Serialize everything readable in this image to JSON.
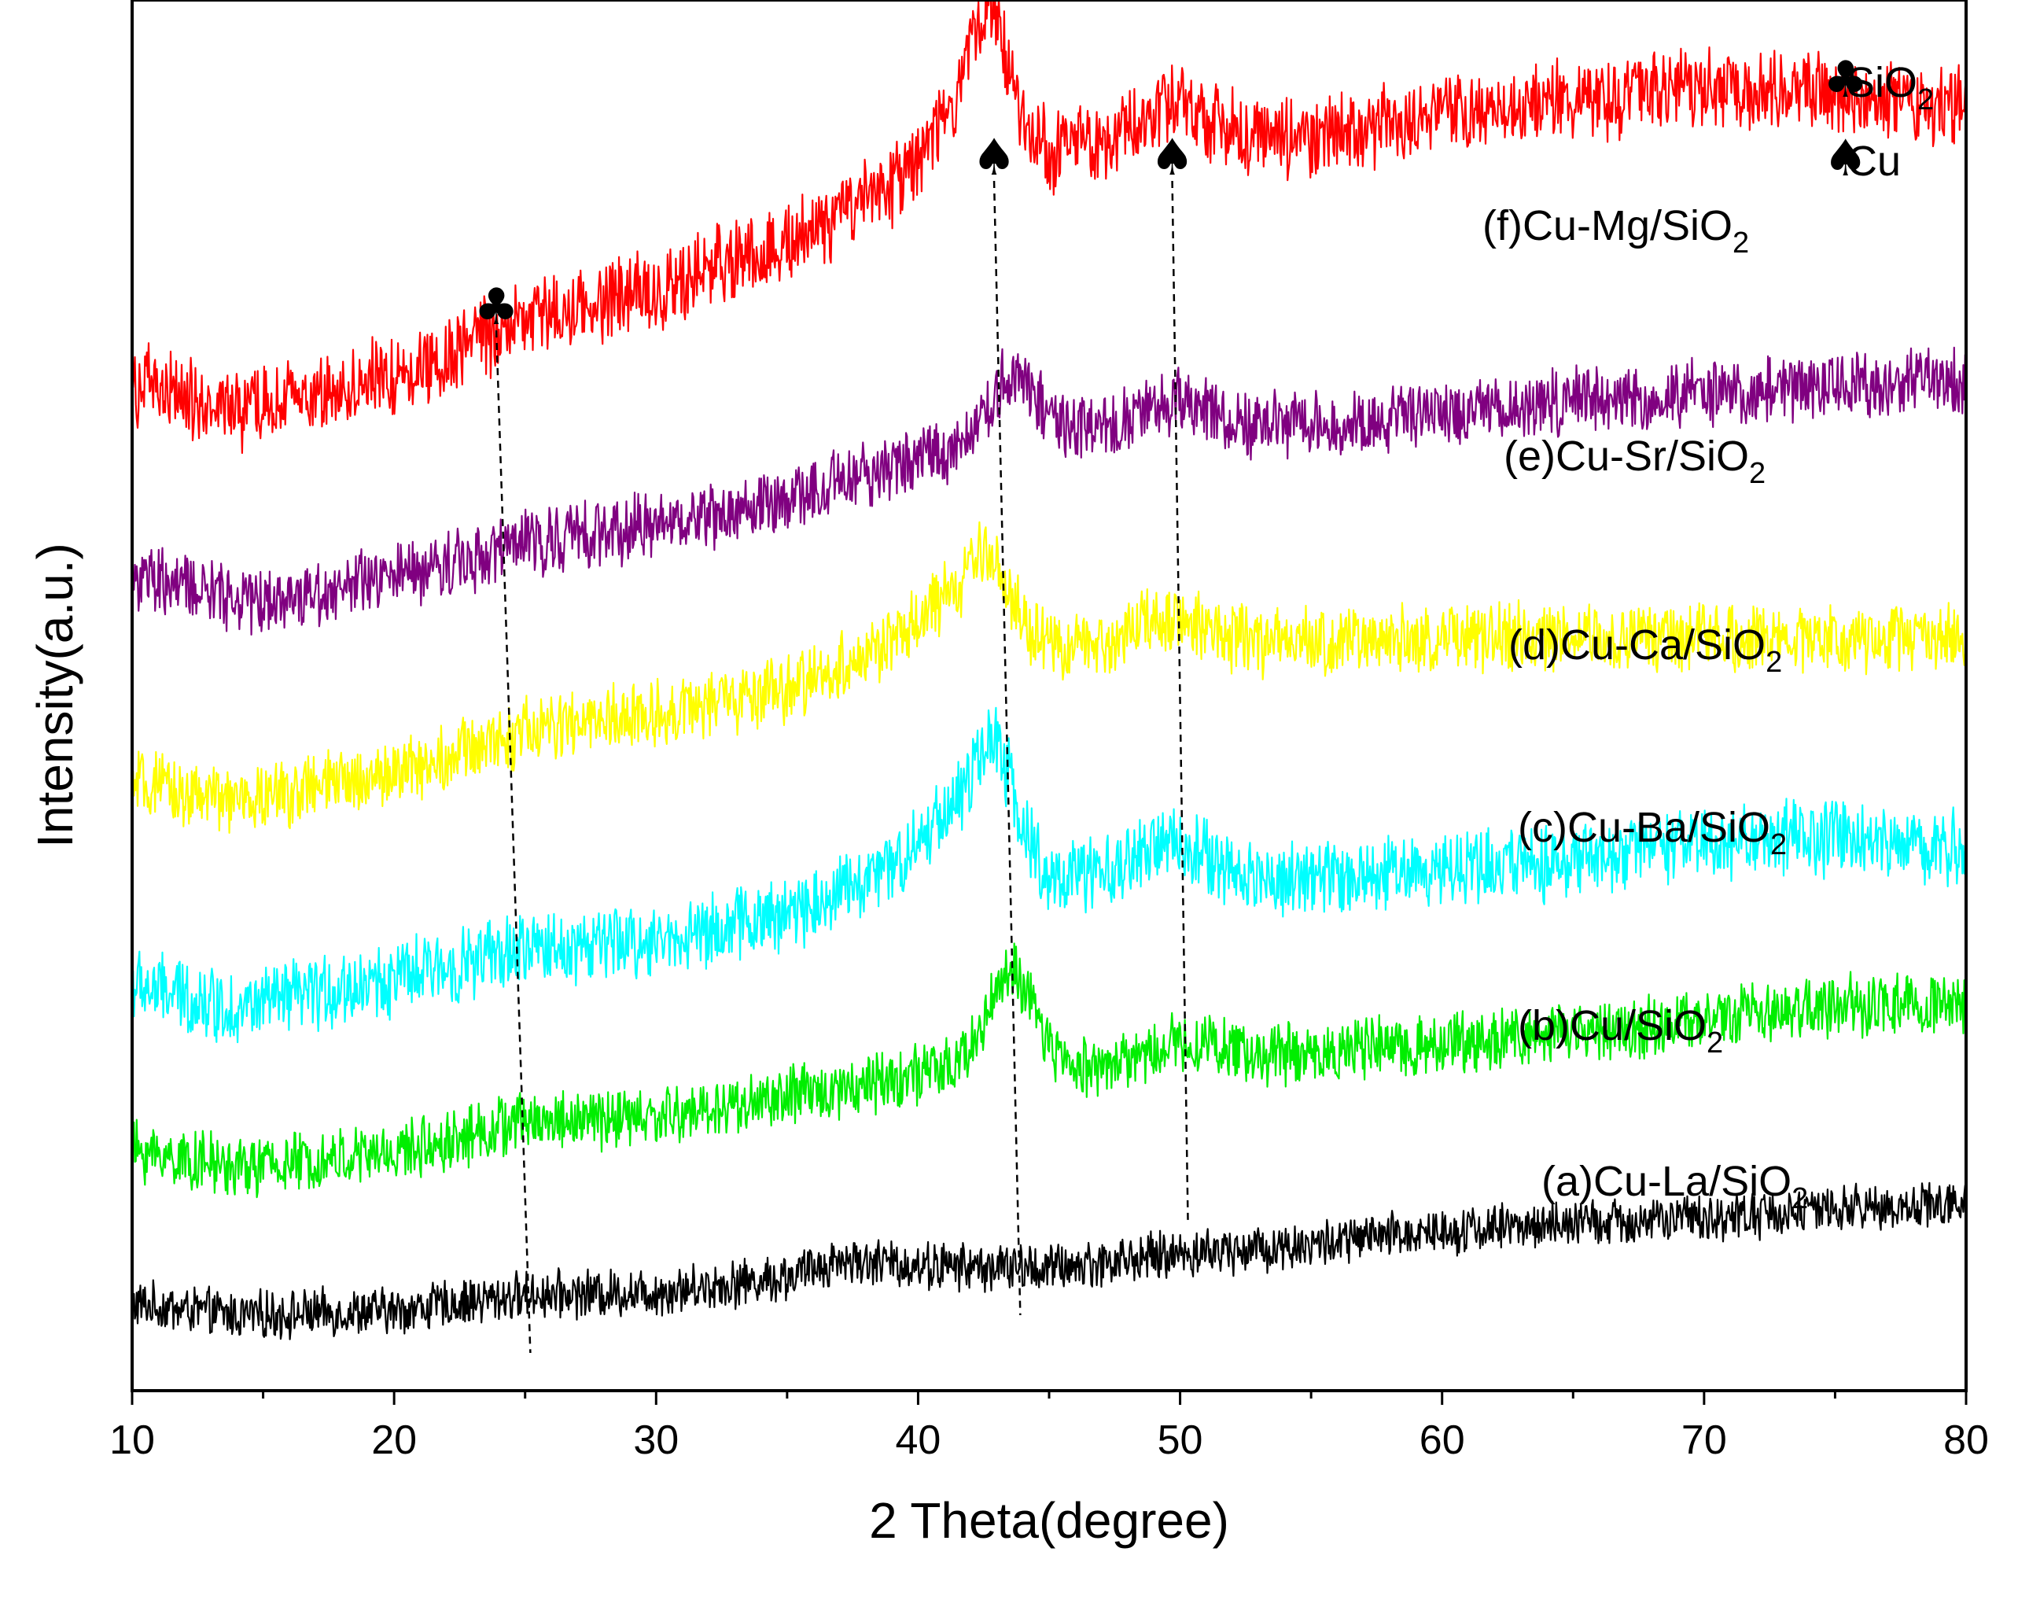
{
  "chart_data": {
    "type": "line",
    "xlabel": "2 Theta(degree)",
    "ylabel": "Intensity(a.u.)",
    "xlim": [
      10,
      80
    ],
    "xticks": [
      "10",
      "20",
      "30",
      "40",
      "50",
      "60",
      "70",
      "80"
    ],
    "yticks_shown": false,
    "legend": [
      {
        "symbol": "♣",
        "label": "SiO",
        "sub": "2"
      },
      {
        "symbol": "♠",
        "label": "Cu",
        "sub": ""
      }
    ],
    "peak_markers": [
      {
        "symbol": "♣",
        "phase": "SiO2",
        "x_top": 23.9,
        "x_bottom": 25.2
      },
      {
        "symbol": "♠",
        "phase": "Cu",
        "x_top": 42.9,
        "x_bottom": 43.9
      },
      {
        "symbol": "♠",
        "phase": "Cu",
        "x_top": 49.7,
        "x_bottom": 50.3
      }
    ],
    "series": [
      {
        "name": "(a)Cu-La/SiO",
        "sub": "2",
        "color": "#000000",
        "offset": 0.0,
        "profile": [
          [
            10,
            0.3
          ],
          [
            14,
            0.1
          ],
          [
            20,
            0.18
          ],
          [
            25,
            0.45
          ],
          [
            30,
            0.5
          ],
          [
            35,
            0.75
          ],
          [
            37,
            1.05
          ],
          [
            40,
            0.95
          ],
          [
            45,
            0.9
          ],
          [
            50,
            1.15
          ],
          [
            55,
            1.3
          ],
          [
            60,
            1.55
          ],
          [
            65,
            1.65
          ],
          [
            70,
            1.75
          ],
          [
            75,
            1.9
          ],
          [
            80,
            2.0
          ]
        ],
        "peaks": [],
        "noise": 0.35
      },
      {
        "name": "(b)Cu/SiO",
        "sub": "2",
        "color": "#00ee00",
        "offset": 2.6,
        "profile": [
          [
            10,
            0.3
          ],
          [
            14,
            0.0
          ],
          [
            20,
            0.25
          ],
          [
            25,
            0.8
          ],
          [
            30,
            0.85
          ],
          [
            35,
            1.2
          ],
          [
            40,
            1.6
          ],
          [
            45,
            1.7
          ],
          [
            50,
            1.85
          ],
          [
            55,
            1.95
          ],
          [
            60,
            2.1
          ],
          [
            65,
            2.3
          ],
          [
            70,
            2.5
          ],
          [
            75,
            2.75
          ],
          [
            80,
            2.8
          ]
        ],
        "peaks": [
          [
            43.5,
            1.6,
            0.9
          ],
          [
            50.3,
            0.3,
            1.2
          ]
        ],
        "noise": 0.45
      },
      {
        "name": "(c)Cu-Ba/SiO",
        "sub": "2",
        "color": "#00ffff",
        "offset": 5.3,
        "profile": [
          [
            10,
            0.4
          ],
          [
            14,
            0.0
          ],
          [
            20,
            0.5
          ],
          [
            25,
            1.0
          ],
          [
            30,
            1.15
          ],
          [
            35,
            1.6
          ],
          [
            39,
            2.4
          ],
          [
            41,
            3.3
          ],
          [
            45,
            2.2
          ],
          [
            50,
            2.2
          ],
          [
            55,
            2.2
          ],
          [
            60,
            2.4
          ],
          [
            65,
            2.5
          ],
          [
            70,
            2.8
          ],
          [
            75,
            2.9
          ],
          [
            80,
            2.7
          ]
        ],
        "peaks": [
          [
            42.9,
            1.7,
            0.8
          ],
          [
            49.7,
            0.6,
            1.3
          ]
        ],
        "noise": 0.55
      },
      {
        "name": "(d)Cu-Ca/SiO",
        "sub": "2",
        "color": "#ffff00",
        "offset": 8.8,
        "profile": [
          [
            10,
            0.3
          ],
          [
            14,
            0.0
          ],
          [
            20,
            0.5
          ],
          [
            25,
            1.2
          ],
          [
            30,
            1.5
          ],
          [
            35,
            1.9
          ],
          [
            39,
            2.7
          ],
          [
            41,
            3.4
          ],
          [
            45,
            2.6
          ],
          [
            50,
            2.7
          ],
          [
            55,
            2.7
          ],
          [
            60,
            2.8
          ],
          [
            65,
            2.8
          ],
          [
            70,
            2.8
          ],
          [
            75,
            2.8
          ],
          [
            80,
            2.8
          ]
        ],
        "peaks": [
          [
            42.7,
            1.1,
            0.8
          ],
          [
            49.6,
            0.5,
            1.2
          ]
        ],
        "noise": 0.5
      },
      {
        "name": "(e)Cu-Sr/SiO",
        "sub": "2",
        "color": "#800080",
        "offset": 12.2,
        "profile": [
          [
            10,
            0.4
          ],
          [
            15,
            0.0
          ],
          [
            20,
            0.4
          ],
          [
            25,
            1.0
          ],
          [
            30,
            1.3
          ],
          [
            35,
            1.7
          ],
          [
            39,
            2.3
          ],
          [
            42,
            2.7
          ],
          [
            45,
            2.9
          ],
          [
            50,
            3.0
          ],
          [
            55,
            3.0
          ],
          [
            60,
            3.2
          ],
          [
            65,
            3.4
          ],
          [
            70,
            3.5
          ],
          [
            75,
            3.7
          ],
          [
            80,
            3.7
          ]
        ],
        "peaks": [
          [
            43.6,
            1.0,
            0.9
          ],
          [
            49.8,
            0.4,
            1.2
          ]
        ],
        "noise": 0.5
      },
      {
        "name": "(f)Cu-Mg/SiO",
        "sub": "2",
        "color": "#ff0000",
        "offset": 15.4,
        "profile": [
          [
            10,
            0.5
          ],
          [
            14,
            0.0
          ],
          [
            20,
            0.6
          ],
          [
            25,
            1.6
          ],
          [
            30,
            2.1
          ],
          [
            35,
            2.9
          ],
          [
            39,
            3.8
          ],
          [
            41,
            4.8
          ],
          [
            45,
            4.4
          ],
          [
            50,
            4.6
          ],
          [
            55,
            4.7
          ],
          [
            60,
            5.0
          ],
          [
            65,
            5.3
          ],
          [
            70,
            5.5
          ],
          [
            75,
            5.4
          ],
          [
            80,
            5.2
          ]
        ],
        "peaks": [
          [
            42.7,
            2.2,
            0.8
          ],
          [
            49.6,
            0.6,
            1.4
          ]
        ],
        "noise": 0.6
      }
    ]
  }
}
